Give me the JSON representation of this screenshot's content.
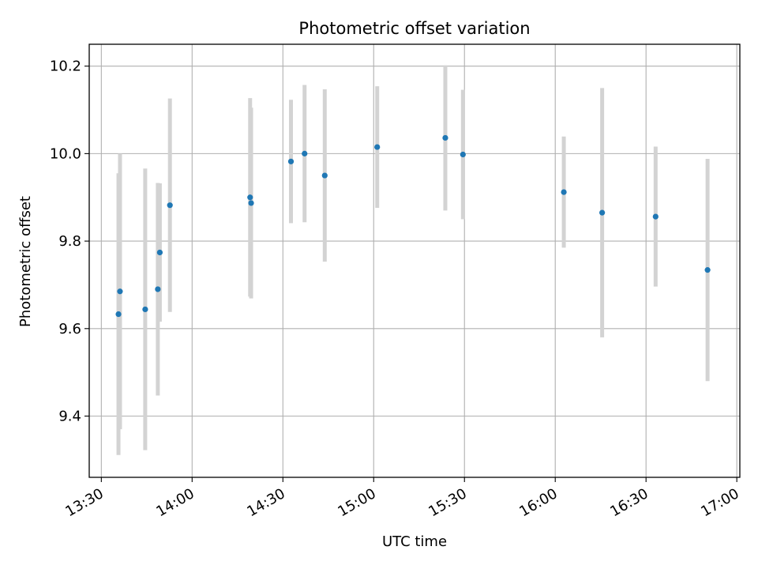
{
  "chart_data": {
    "type": "scatter",
    "title": "Photometric offset variation",
    "xlabel": "UTC time",
    "ylabel": "Photometric offset",
    "xlim": [
      "13:26",
      "17:01"
    ],
    "ylim": [
      9.26,
      10.25
    ],
    "x_ticks": [
      "13:30",
      "14:00",
      "14:30",
      "15:00",
      "15:30",
      "16:00",
      "16:30",
      "17:00"
    ],
    "y_ticks": [
      9.4,
      9.6,
      9.8,
      10.0,
      10.2
    ],
    "grid": true,
    "colors": {
      "point": "#1f77b4",
      "errorbar": "#d3d3d3",
      "grid": "#b0b0b0"
    },
    "series": [
      {
        "x": [
          "13:35:40",
          "13:36:10",
          "13:44:30",
          "13:48:40",
          "13:49:20",
          "13:52:40",
          "14:19:10",
          "14:19:30",
          "14:32:40",
          "14:37:10",
          "14:43:50",
          "15:01:10",
          "15:23:40",
          "15:29:30",
          "16:02:50",
          "16:15:30",
          "16:33:10",
          "16:50:20"
        ],
        "y": [
          9.633,
          9.685,
          9.644,
          9.69,
          9.774,
          9.882,
          9.9,
          9.887,
          9.982,
          10.0,
          9.95,
          10.015,
          10.036,
          9.998,
          9.912,
          9.865,
          9.856,
          9.734
        ],
        "yerr": [
          0.322,
          0.315,
          0.322,
          0.243,
          0.158,
          0.244,
          0.227,
          0.218,
          0.141,
          0.157,
          0.197,
          0.139,
          0.166,
          0.148,
          0.127,
          0.285,
          0.16,
          0.254
        ]
      }
    ]
  }
}
